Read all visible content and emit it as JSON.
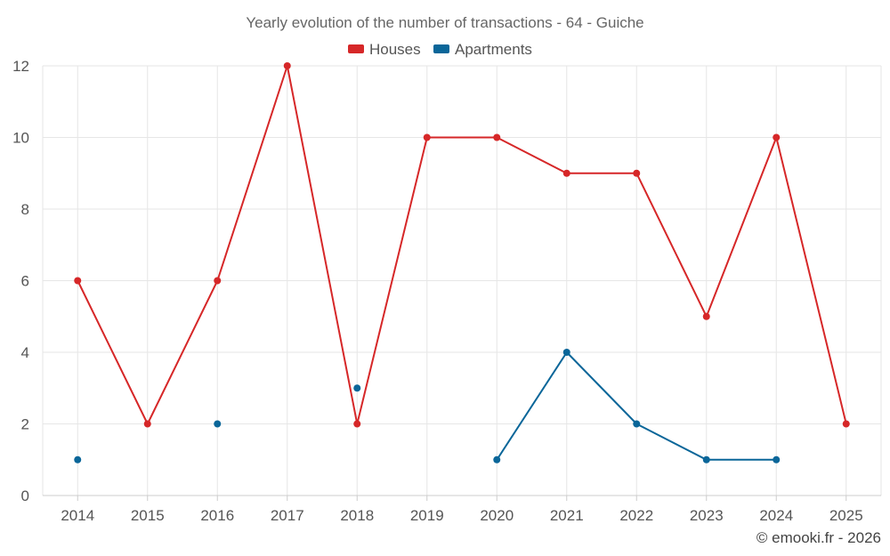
{
  "chart_data": {
    "type": "line",
    "title": "Yearly evolution of the number of transactions - 64 - Guiche",
    "categories": [
      "2014",
      "2015",
      "2016",
      "2017",
      "2018",
      "2019",
      "2020",
      "2021",
      "2022",
      "2023",
      "2024",
      "2025"
    ],
    "ylim": [
      0,
      12
    ],
    "yticks": [
      0,
      2,
      4,
      6,
      8,
      10,
      12
    ],
    "legend_position": "top-center",
    "grid": true,
    "series": [
      {
        "name": "Houses",
        "color": "#d62728",
        "values": [
          6,
          2,
          6,
          12,
          2,
          10,
          10,
          9,
          9,
          5,
          10,
          2
        ]
      },
      {
        "name": "Apartments",
        "color": "#0a6699",
        "values": [
          1,
          null,
          2,
          null,
          3,
          null,
          1,
          4,
          2,
          1,
          1,
          null
        ]
      }
    ],
    "xlabel": "",
    "ylabel": ""
  },
  "credit": "© emooki.fr - 2026"
}
